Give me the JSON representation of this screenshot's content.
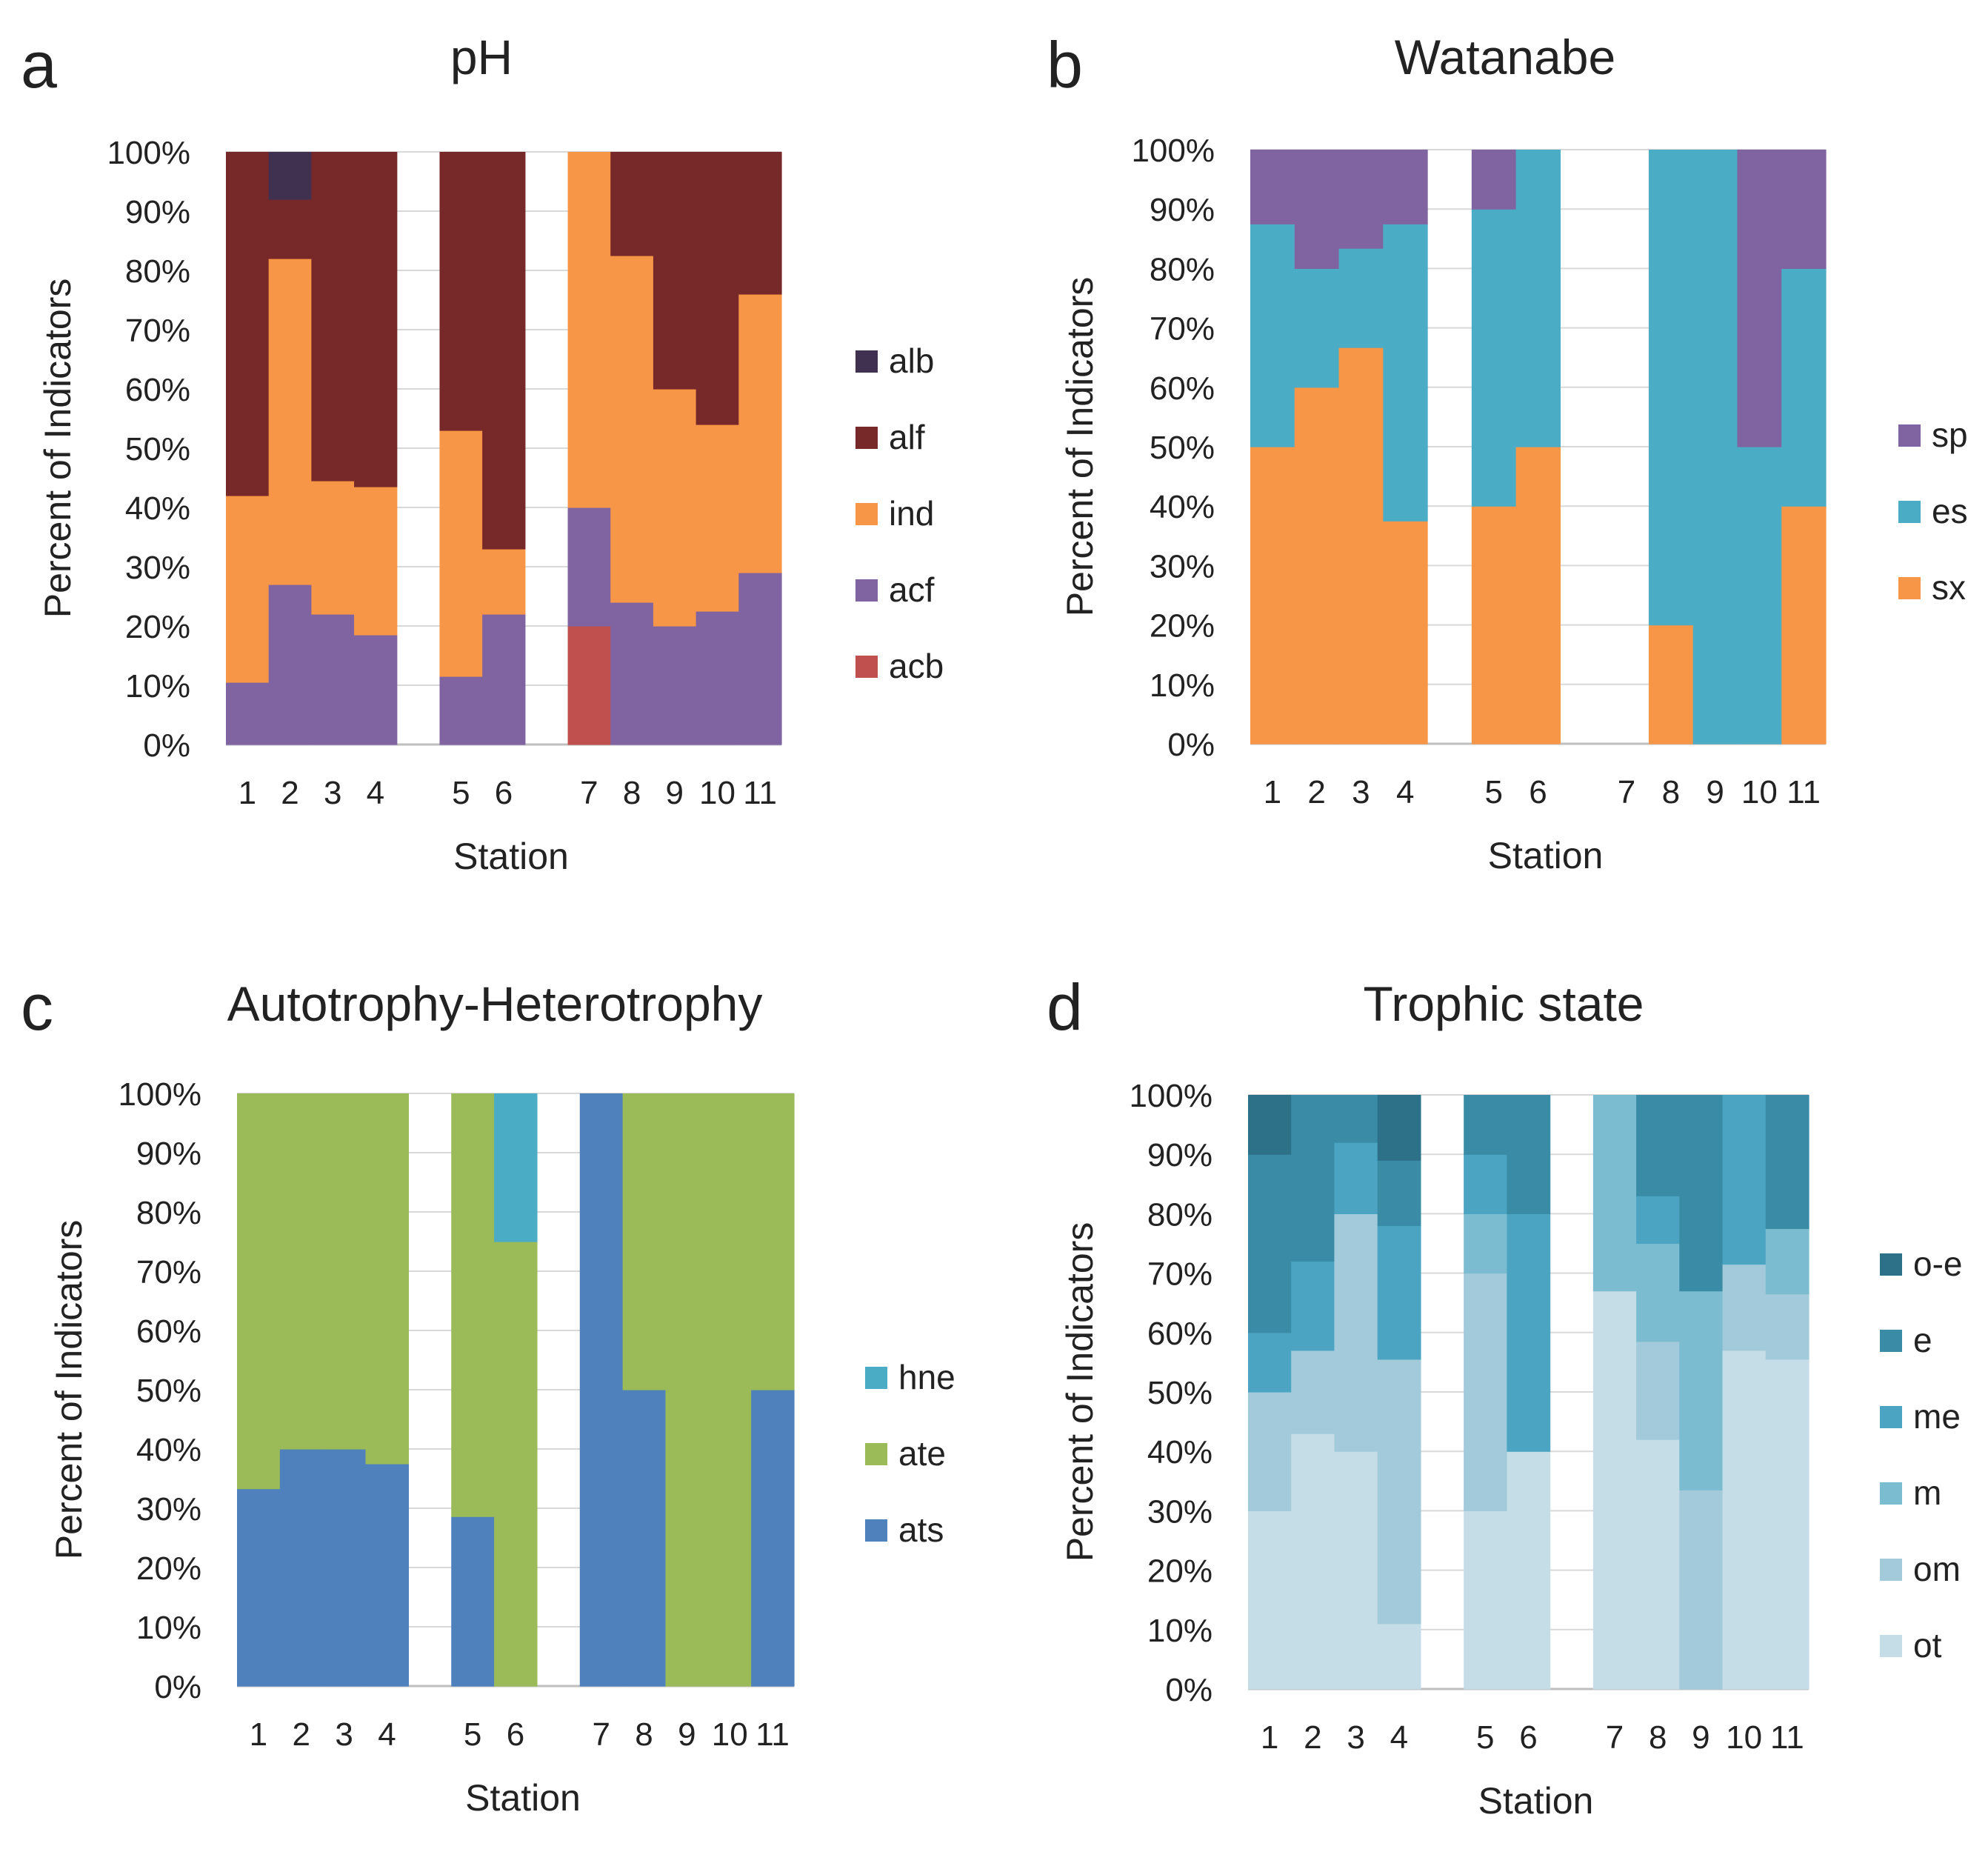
{
  "figure": {
    "panel_letters": [
      "a",
      "b",
      "c",
      "d"
    ]
  },
  "chart_data": [
    {
      "type": "bar",
      "stacked": "percent",
      "panel": "a",
      "title": "pH",
      "xlabel": "Station",
      "ylabel": "Percent of Indicators",
      "ylim": [
        0,
        100
      ],
      "y_ticks": [
        "0%",
        "10%",
        "20%",
        "30%",
        "40%",
        "50%",
        "60%",
        "70%",
        "80%",
        "90%",
        "100%"
      ],
      "categories": [
        "1",
        "2",
        "3",
        "4",
        "",
        "5",
        "6",
        "",
        "7",
        "8",
        "9",
        "10",
        "11"
      ],
      "legend_position": "right",
      "series": [
        {
          "name": "acb",
          "color": "#c0504d",
          "values": [
            0,
            0,
            0,
            0,
            0,
            0,
            0,
            0,
            20,
            0,
            0,
            0,
            0
          ]
        },
        {
          "name": "acf",
          "color": "#8064a2",
          "values": [
            10.5,
            27,
            22,
            18.5,
            0,
            11.5,
            22,
            0,
            20,
            24,
            20,
            22.5,
            29
          ]
        },
        {
          "name": "ind",
          "color": "#f79646",
          "values": [
            31.5,
            55,
            22.5,
            25,
            0,
            41.5,
            11,
            0,
            60,
            58.5,
            40,
            31.5,
            47
          ]
        },
        {
          "name": "alf",
          "color": "#772828",
          "values": [
            58,
            10,
            55.5,
            56.5,
            0,
            47,
            67,
            0,
            0,
            17.5,
            40,
            46,
            24
          ]
        },
        {
          "name": "alb",
          "color": "#403151",
          "values": [
            0,
            8,
            0,
            0,
            0,
            0,
            0,
            0,
            0,
            0,
            0,
            0,
            0
          ]
        }
      ]
    },
    {
      "type": "bar",
      "stacked": "percent",
      "panel": "b",
      "title": "Watanabe",
      "xlabel": "Station",
      "ylabel": "Percent of Indicators",
      "ylim": [
        0,
        100
      ],
      "y_ticks": [
        "0%",
        "10%",
        "20%",
        "30%",
        "40%",
        "50%",
        "60%",
        "70%",
        "80%",
        "90%",
        "100%"
      ],
      "categories": [
        "1",
        "2",
        "3",
        "4",
        "",
        "5",
        "6",
        "",
        "7",
        "8",
        "9",
        "10",
        "11"
      ],
      "legend_position": "right",
      "series": [
        {
          "name": "sx",
          "color": "#f79646",
          "values": [
            50,
            60,
            66.7,
            37.5,
            0,
            40,
            50,
            0,
            0,
            20,
            0,
            0,
            40
          ]
        },
        {
          "name": "es",
          "color": "#4bacc6",
          "values": [
            37.5,
            20,
            16.7,
            50,
            0,
            50,
            50,
            0,
            0,
            80,
            100,
            50,
            40
          ]
        },
        {
          "name": "sp",
          "color": "#8064a2",
          "values": [
            12.5,
            20,
            16.6,
            12.5,
            0,
            10,
            0,
            0,
            0,
            0,
            0,
            50,
            20
          ]
        }
      ]
    },
    {
      "type": "bar",
      "stacked": "percent",
      "panel": "c",
      "title": "Autotrophy-Heterotrophy",
      "xlabel": "Station",
      "ylabel": "Percent of Indicators",
      "ylim": [
        0,
        100
      ],
      "y_ticks": [
        "0%",
        "10%",
        "20%",
        "30%",
        "40%",
        "50%",
        "60%",
        "70%",
        "80%",
        "90%",
        "100%"
      ],
      "categories": [
        "1",
        "2",
        "3",
        "4",
        "",
        "5",
        "6",
        "",
        "7",
        "8",
        "9",
        "10",
        "11"
      ],
      "legend_position": "right",
      "series": [
        {
          "name": "ats",
          "color": "#4f81bd",
          "values": [
            33.3,
            40,
            40,
            37.5,
            0,
            28.6,
            0,
            0,
            100,
            50,
            0,
            0,
            50
          ]
        },
        {
          "name": "ate",
          "color": "#9bbb59",
          "values": [
            66.7,
            60,
            60,
            62.5,
            0,
            71.4,
            75,
            0,
            0,
            50,
            100,
            100,
            50
          ]
        },
        {
          "name": "hne",
          "color": "#4bacc6",
          "values": [
            0,
            0,
            0,
            0,
            0,
            0,
            25,
            0,
            0,
            0,
            0,
            0,
            0
          ]
        }
      ]
    },
    {
      "type": "bar",
      "stacked": "percent",
      "panel": "d",
      "title": "Trophic state",
      "xlabel": "Station",
      "ylabel": "Percent of Indicators",
      "ylim": [
        0,
        100
      ],
      "y_ticks": [
        "0%",
        "10%",
        "20%",
        "30%",
        "40%",
        "50%",
        "60%",
        "70%",
        "80%",
        "90%",
        "100%"
      ],
      "categories": [
        "1",
        "2",
        "3",
        "4",
        "",
        "5",
        "6",
        "",
        "7",
        "8",
        "9",
        "10",
        "11"
      ],
      "legend_position": "right",
      "series": [
        {
          "name": "ot",
          "color": "#c4dde6",
          "values": [
            30,
            43,
            40,
            11,
            0,
            30,
            40,
            0,
            67,
            42,
            0,
            57,
            55.5
          ]
        },
        {
          "name": "om",
          "color": "#a2cadb",
          "values": [
            20,
            14,
            40,
            44.5,
            0,
            40,
            0,
            0,
            0,
            16.5,
            33.5,
            14.5,
            11
          ]
        },
        {
          "name": "m",
          "color": "#7cbcd1",
          "values": [
            0,
            0,
            0,
            0,
            0,
            10,
            0,
            0,
            33,
            16.5,
            33.5,
            0,
            11
          ]
        },
        {
          "name": "me",
          "color": "#4ba5c2",
          "values": [
            10,
            15,
            12,
            22.5,
            0,
            10,
            40,
            0,
            0,
            8,
            0,
            28.5,
            0
          ]
        },
        {
          "name": "e",
          "color": "#3a8ca6",
          "values": [
            30,
            28,
            8,
            11,
            0,
            10,
            20,
            0,
            0,
            17,
            33,
            0,
            22.5
          ]
        },
        {
          "name": "o-e",
          "color": "#2c7188",
          "values": [
            10,
            0,
            0,
            11,
            0,
            0,
            0,
            0,
            0,
            0,
            0,
            0,
            0
          ]
        }
      ]
    }
  ]
}
